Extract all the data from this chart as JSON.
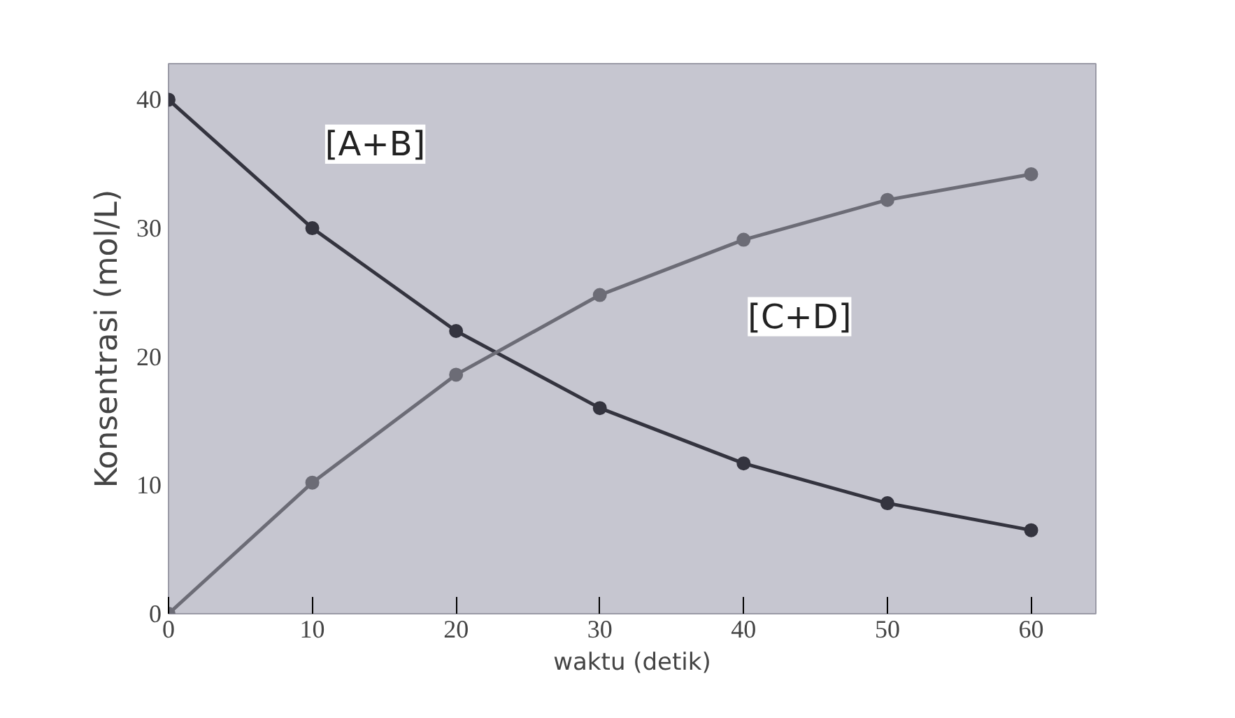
{
  "chart_data": {
    "type": "line",
    "xlabel": "waktu (detik)",
    "ylabel": "Konsentrasi (mol/L)",
    "x": [
      0,
      10,
      20,
      30,
      40,
      50,
      60
    ],
    "series": [
      {
        "name": "[A+B]",
        "color": "#34343f",
        "values": [
          40,
          30,
          22,
          16,
          11.7,
          8.6,
          6.5
        ]
      },
      {
        "name": "[C+D]",
        "color": "#6c6c76",
        "values": [
          0,
          10.2,
          18.6,
          24.8,
          29.1,
          32.2,
          34.2
        ]
      }
    ],
    "xlim": [
      0,
      64.5
    ],
    "ylim": [
      0,
      42.8
    ],
    "xticks": [
      0,
      10,
      20,
      30,
      40,
      50,
      60
    ],
    "yticks": [
      0,
      10,
      20,
      30,
      40
    ],
    "grid": false,
    "marker": "circle",
    "line_style": "solid"
  }
}
